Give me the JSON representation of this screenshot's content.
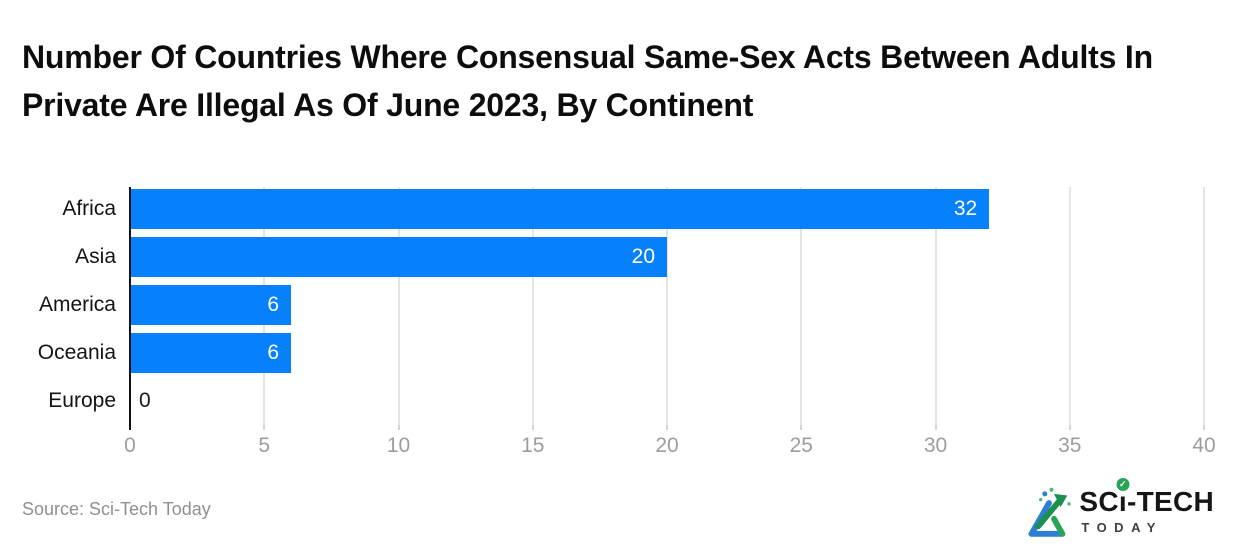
{
  "title": "Number Of Countries Where Consensual Same-Sex Acts Between Adults In Private Are Illegal As Of June 2023, By Continent",
  "source_text": "Source: Sci-Tech Today",
  "logo": {
    "part1": "SC",
    "part2": "ı",
    "part3": "-TECH",
    "check": "✓",
    "tagline": "TODAY"
  },
  "colors": {
    "bar": "#0680fb",
    "gridline": "#e5e5e5",
    "axis_line": "#111111",
    "tick_label": "#9d9d9d",
    "category_label": "#141414",
    "value_label_inside": "#ffffff",
    "value_label_zero": "#1a1a1a",
    "title": "#0d0d0d",
    "source": "#8f8f8f",
    "logo_green": "#27a457",
    "logo_blue": "#2e7fd4"
  },
  "chart_data": {
    "type": "bar",
    "orientation": "horizontal",
    "title": "Number Of Countries Where Consensual Same-Sex Acts Between Adults In Private Are Illegal As Of June 2023, By Continent",
    "categories": [
      "Africa",
      "Asia",
      "America",
      "Oceania",
      "Europe"
    ],
    "values": [
      32,
      20,
      6,
      6,
      0
    ],
    "xlabel": "",
    "ylabel": "",
    "xlim": [
      0,
      40
    ],
    "xticks": [
      0,
      5,
      10,
      15,
      20,
      25,
      30,
      35,
      40
    ],
    "grid": true,
    "legend": false,
    "value_labels_shown": true
  }
}
